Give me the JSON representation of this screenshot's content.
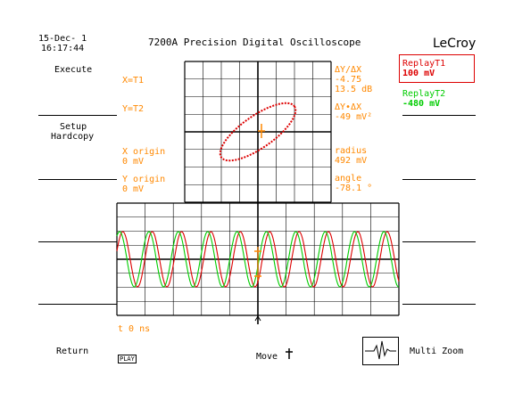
{
  "header": {
    "date": "15-Dec- 1",
    "time": "16:17:44",
    "title": "7200A Precision Digital Oscilloscope",
    "brand": "LeCroy"
  },
  "left_menu": {
    "execute": "Execute",
    "setup_line1": "Setup",
    "setup_line2": "Hardcopy",
    "return": "Return",
    "play": "PLAY"
  },
  "cursor_info": {
    "x_label": "X=T1",
    "y_label": "Y=T2",
    "x_origin_label": "X origin",
    "x_origin_value": "0 mV",
    "y_origin_label": "Y origin",
    "y_origin_value": "0 mV",
    "dy_dx_label": "ΔY/ΔX",
    "dy_dx_value": "-4.75",
    "dy_dx_db": "13.5 dB",
    "dy_times_dx_label": "ΔY•ΔX",
    "dy_times_dx_value": "-49 mV²",
    "radius_label": "radius",
    "radius_value": "492 mV",
    "angle_label": "angle",
    "angle_value": "-78.1 °",
    "time_readout": "t 0 ns"
  },
  "right_menu": {
    "replay_t1_label": "ReplayT1",
    "replay_t1_value": "100 mV",
    "replay_t2_label": "ReplayT2",
    "replay_t2_value": "-480 mV",
    "multi_zoom": "Multi Zoom"
  },
  "bottom": {
    "move_label": "Move"
  },
  "colors": {
    "trace1": "#dd0000",
    "trace2": "#00cc00",
    "cursor": "#ff8800"
  },
  "chart_data": [
    {
      "type": "scatter",
      "title": "",
      "series": [
        {
          "name": "",
          "shape": "ellipse (XY plot T1 vs T2)"
        }
      ],
      "grid": true
    },
    {
      "type": "line",
      "title": "",
      "series": [
        {
          "name": "",
          "waveform": "sine",
          "cycles": 9.6,
          "phase_deg": 0
        },
        {
          "name": "",
          "waveform": "sine",
          "cycles": 9.6,
          "phase_deg": 40
        }
      ],
      "grid": true
    }
  ]
}
